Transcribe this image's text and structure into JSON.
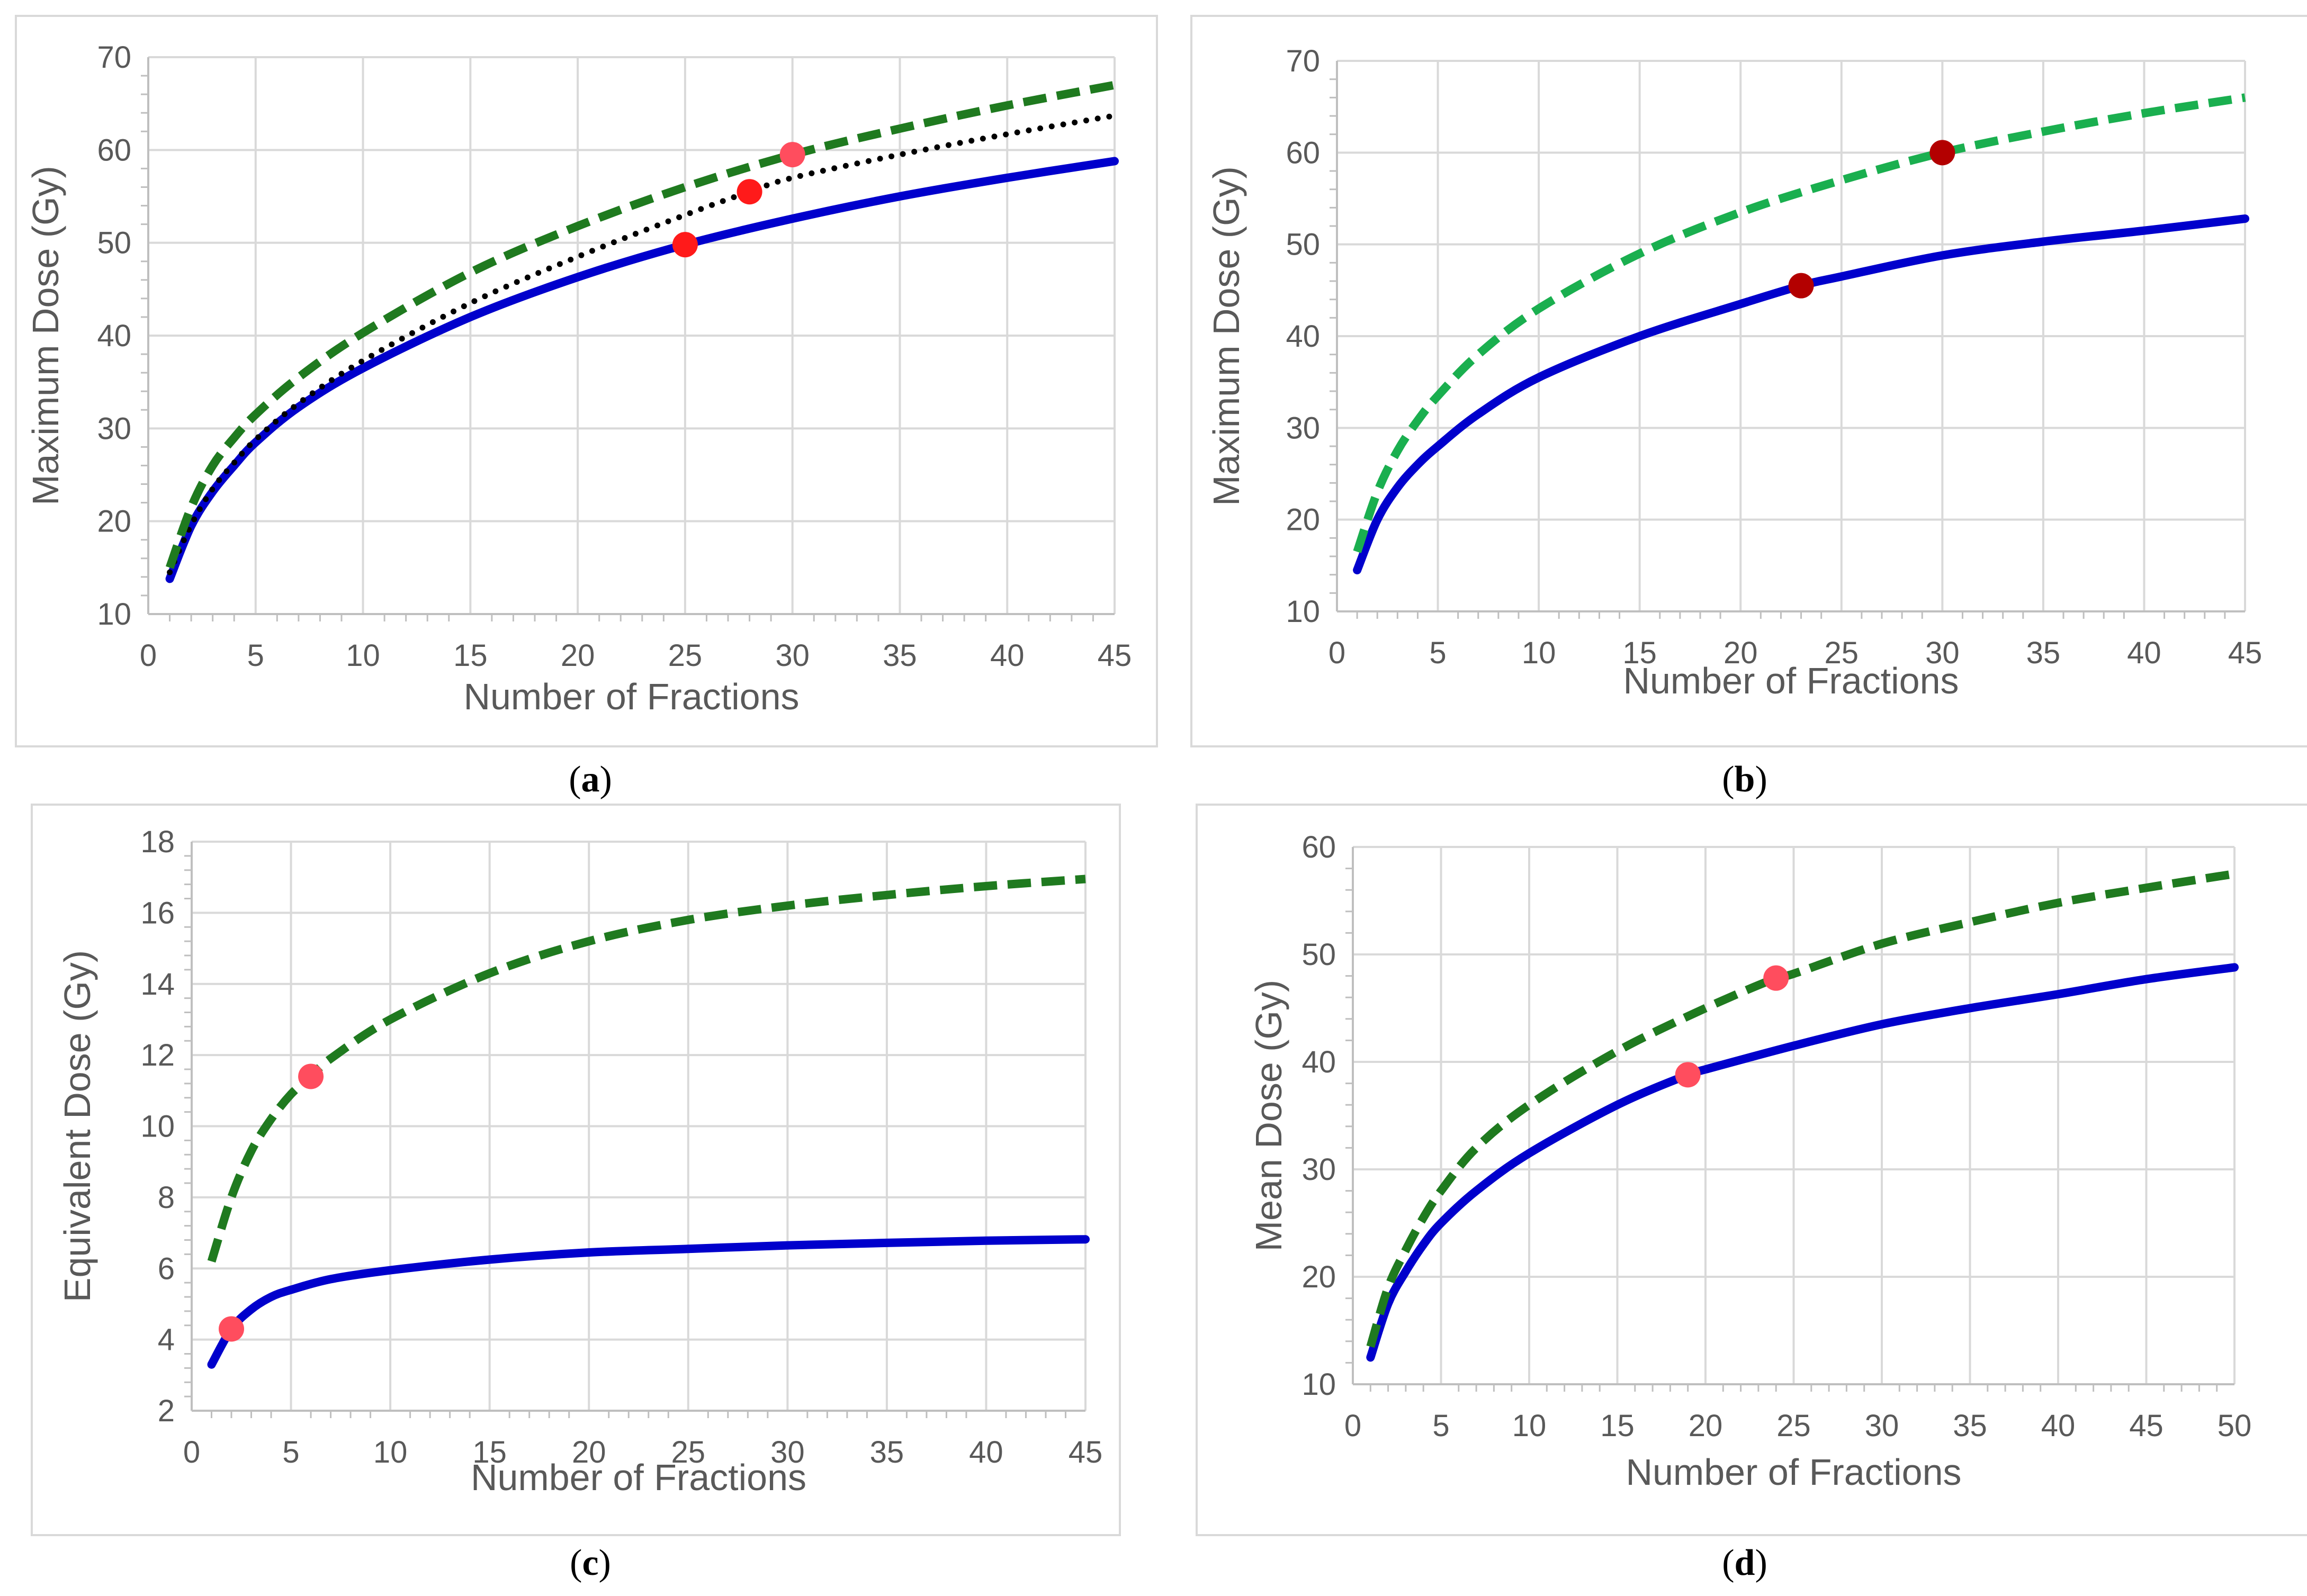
{
  "chart_data": [
    {
      "type": "line",
      "panel": "a",
      "caption": {
        "open": "(",
        "letter": "a",
        "close": ")"
      },
      "xlabel": "Number of Fractions",
      "ylabel": "Maximum Dose (Gy)",
      "xlim": [
        0,
        45
      ],
      "ylim": [
        10,
        70
      ],
      "xticks": [
        0,
        5,
        10,
        15,
        20,
        25,
        30,
        35,
        40,
        45
      ],
      "yticks": [
        10,
        20,
        30,
        40,
        50,
        60,
        70
      ],
      "grid": true,
      "series": [
        {
          "name": "solid-blue",
          "style": "solid",
          "color": "#0000CC",
          "x": [
            1,
            2,
            3,
            4,
            5,
            7,
            10,
            15,
            20,
            25,
            30,
            35,
            40,
            45
          ],
          "y": [
            13.8,
            19.5,
            23.2,
            26.0,
            28.5,
            32.3,
            36.5,
            42.0,
            46.3,
            49.8,
            52.6,
            55.0,
            57.0,
            58.8
          ]
        },
        {
          "name": "dotted-black",
          "style": "dotted",
          "color": "#000000",
          "x": [
            1,
            2,
            3,
            4,
            5,
            7,
            10,
            15,
            20,
            25,
            28,
            30,
            35,
            40,
            45
          ],
          "y": [
            14.5,
            19.6,
            23.5,
            26.3,
            28.8,
            32.7,
            37.3,
            43.5,
            48.5,
            53.0,
            55.5,
            57.0,
            59.5,
            61.7,
            63.7
          ]
        },
        {
          "name": "dashed-green",
          "style": "dashed",
          "color": "#1F7A1F",
          "x": [
            1,
            2,
            3,
            4,
            5,
            7,
            10,
            15,
            20,
            25,
            30,
            35,
            40,
            45
          ],
          "y": [
            15.0,
            21.5,
            26.0,
            29.0,
            31.5,
            35.5,
            40.3,
            46.8,
            51.8,
            56.0,
            59.5,
            62.3,
            64.8,
            67.0
          ]
        }
      ],
      "markers": [
        {
          "x": 25,
          "y": 49.8,
          "color": "#FF1A1A"
        },
        {
          "x": 28,
          "y": 55.5,
          "color": "#FF1A1A"
        },
        {
          "x": 30,
          "y": 59.5,
          "color": "#FF4D5E"
        }
      ]
    },
    {
      "type": "line",
      "panel": "b",
      "caption": {
        "open": "(",
        "letter": "b",
        "close": ")"
      },
      "xlabel": "Number of Fractions",
      "ylabel": "Maximum Dose (Gy)",
      "xlim": [
        0,
        45
      ],
      "ylim": [
        10,
        70
      ],
      "xticks": [
        0,
        5,
        10,
        15,
        20,
        25,
        30,
        35,
        40,
        45
      ],
      "yticks": [
        10,
        20,
        30,
        40,
        50,
        60,
        70
      ],
      "grid": true,
      "series": [
        {
          "name": "solid-blue",
          "style": "solid",
          "color": "#0000CC",
          "x": [
            1,
            2,
            3,
            4,
            5,
            7,
            10,
            15,
            20,
            23,
            25,
            30,
            35,
            40,
            45
          ],
          "y": [
            14.5,
            20.0,
            23.5,
            26.0,
            28.0,
            31.5,
            35.5,
            40.0,
            43.5,
            45.5,
            46.5,
            48.8,
            50.3,
            51.5,
            52.8
          ]
        },
        {
          "name": "dashed-green",
          "style": "dashed",
          "color": "#1AAF4F",
          "x": [
            1,
            2,
            3,
            4,
            5,
            7,
            10,
            15,
            20,
            25,
            30,
            35,
            40,
            45
          ],
          "y": [
            16.5,
            23.0,
            27.5,
            30.8,
            33.5,
            38.0,
            43.0,
            49.0,
            53.5,
            57.0,
            60.0,
            62.3,
            64.3,
            66.0
          ]
        }
      ],
      "markers": [
        {
          "x": 23,
          "y": 45.5,
          "color": "#B30000"
        },
        {
          "x": 30,
          "y": 60.0,
          "color": "#B30000"
        }
      ]
    },
    {
      "type": "line",
      "panel": "c",
      "caption": {
        "open": "(",
        "letter": "c",
        "close": ")"
      },
      "xlabel": "Number of Fractions",
      "ylabel": "Equivalent Dose (Gy)",
      "xlim": [
        0,
        45
      ],
      "ylim": [
        2,
        18
      ],
      "xticks": [
        0,
        5,
        10,
        15,
        20,
        25,
        30,
        35,
        40,
        45
      ],
      "yticks": [
        2,
        4,
        6,
        8,
        10,
        12,
        14,
        16,
        18
      ],
      "grid": true,
      "series": [
        {
          "name": "solid-blue",
          "style": "solid",
          "color": "#0000CC",
          "x": [
            1,
            2,
            3,
            4,
            5,
            7,
            10,
            15,
            20,
            25,
            30,
            35,
            40,
            45
          ],
          "y": [
            3.3,
            4.3,
            4.85,
            5.2,
            5.4,
            5.7,
            5.95,
            6.25,
            6.45,
            6.55,
            6.65,
            6.72,
            6.78,
            6.82
          ]
        },
        {
          "name": "dashed-green",
          "style": "dashed",
          "color": "#1F7A1F",
          "x": [
            1,
            2,
            3,
            4,
            5,
            6,
            7,
            10,
            15,
            20,
            25,
            30,
            35,
            40,
            45
          ],
          "y": [
            6.2,
            8.0,
            9.3,
            10.2,
            10.9,
            11.4,
            11.9,
            13.0,
            14.3,
            15.2,
            15.8,
            16.2,
            16.5,
            16.75,
            16.95
          ]
        }
      ],
      "markers": [
        {
          "x": 2,
          "y": 4.3,
          "color": "#FF4D5E"
        },
        {
          "x": 6,
          "y": 11.4,
          "color": "#FF4D5E"
        }
      ]
    },
    {
      "type": "line",
      "panel": "d",
      "caption": {
        "open": "(",
        "letter": "d",
        "close": ")"
      },
      "xlabel": "Number of Fractions",
      "ylabel": "Mean Dose (Gy)",
      "xlim": [
        0,
        50
      ],
      "ylim": [
        10,
        60
      ],
      "xticks": [
        0,
        5,
        10,
        15,
        20,
        25,
        30,
        35,
        40,
        45,
        50
      ],
      "yticks": [
        10,
        20,
        30,
        40,
        50,
        60
      ],
      "grid": true,
      "series": [
        {
          "name": "solid-blue",
          "style": "solid",
          "color": "#0000CC",
          "x": [
            1,
            2,
            3,
            4,
            5,
            7,
            10,
            15,
            19,
            20,
            25,
            30,
            35,
            40,
            45,
            50
          ],
          "y": [
            12.5,
            17.5,
            20.5,
            23.0,
            25.0,
            28.0,
            31.5,
            36.0,
            38.8,
            39.3,
            41.5,
            43.5,
            45.0,
            46.3,
            47.7,
            48.8
          ]
        },
        {
          "name": "dashed-green",
          "style": "dashed",
          "color": "#1F7A1F",
          "x": [
            1,
            2,
            3,
            4,
            5,
            7,
            10,
            15,
            20,
            24,
            25,
            30,
            35,
            40,
            45,
            50
          ],
          "y": [
            13.5,
            19.0,
            22.5,
            25.5,
            28.0,
            32.0,
            36.0,
            41.0,
            45.0,
            47.8,
            48.2,
            51.0,
            53.0,
            54.8,
            56.2,
            57.5
          ]
        }
      ],
      "markers": [
        {
          "x": 19,
          "y": 38.8,
          "color": "#FF4D5E"
        },
        {
          "x": 24,
          "y": 47.8,
          "color": "#FF4D5E"
        }
      ]
    }
  ]
}
